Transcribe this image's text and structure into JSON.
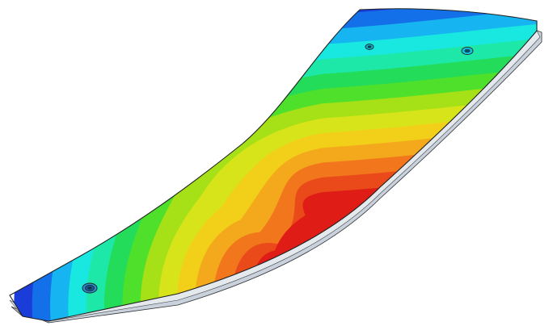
{
  "scene": {
    "subject": "laminated-spring-plate",
    "fringe_colormap": [
      "#1a3cd8",
      "#1470e8",
      "#16b4f0",
      "#19e8e0",
      "#1ee8a8",
      "#22dc5a",
      "#4ee02a",
      "#a6e016",
      "#d8e41a",
      "#f2d01a",
      "#f4a81c",
      "#f2761c",
      "#ea4a1a",
      "#e01c16"
    ],
    "fringe_bands_left_to_center": 11,
    "fringe_bands_right_to_center": 14,
    "bolt_holes": 3,
    "edge_color": "#222222",
    "laminate_color": "#9aa8b8",
    "background": "#ffffff"
  }
}
